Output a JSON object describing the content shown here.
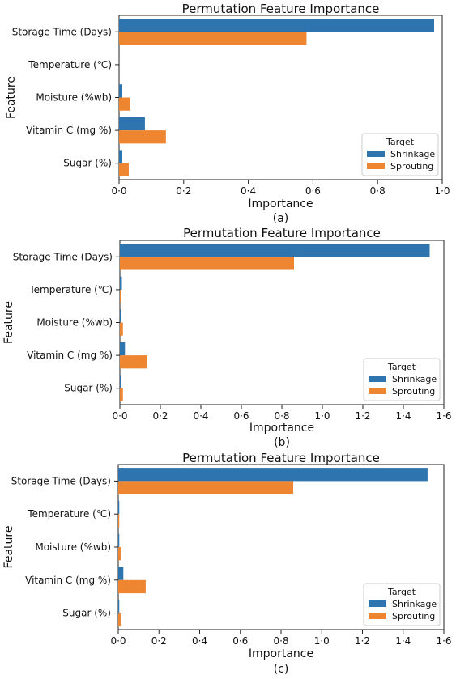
{
  "colors": {
    "shrinkage": "#2e75b0",
    "sprouting": "#ee8531"
  },
  "chart_data": [
    {
      "type": "bar",
      "orientation": "horizontal",
      "title": "Permutation Feature Importance",
      "xlabel": "Importance",
      "ylabel": "Feature",
      "caption": "(a)",
      "categories": [
        "Storage Time (Days)",
        "Temperature (℃)",
        "Moisture (%wb)",
        "Vitamin C (mg %)",
        "Sugar (%)"
      ],
      "series": [
        {
          "name": "Shrinkage",
          "values": [
            0.975,
            0.0,
            0.01,
            0.08,
            0.01
          ]
        },
        {
          "name": "Sprouting",
          "values": [
            0.58,
            0.0,
            0.035,
            0.145,
            0.03
          ]
        }
      ],
      "xlim": [
        0,
        1.0
      ],
      "xticks": [
        0,
        0.2,
        0.4,
        0.6,
        0.8,
        1.0
      ],
      "xtick_labels": [
        "0·0",
        "0·2",
        "0·4",
        "0·6",
        "0·8",
        "1·0"
      ],
      "legend_title": "Target",
      "legend_position": "lower-right"
    },
    {
      "type": "bar",
      "orientation": "horizontal",
      "title": "Permutation Feature Importance",
      "xlabel": "Importance",
      "ylabel": "Feature",
      "caption": "(b)",
      "categories": [
        "Storage Time (Days)",
        "Temperature (℃)",
        "Moisture (%wb)",
        "Vitamin C (mg %)",
        "Sugar (%)"
      ],
      "series": [
        {
          "name": "Shrinkage",
          "values": [
            1.53,
            0.01,
            0.005,
            0.025,
            0.005
          ]
        },
        {
          "name": "Sprouting",
          "values": [
            0.86,
            0.005,
            0.015,
            0.135,
            0.015
          ]
        }
      ],
      "xlim": [
        0,
        1.6
      ],
      "xticks": [
        0,
        0.2,
        0.4,
        0.6,
        0.8,
        1.0,
        1.2,
        1.4,
        1.6
      ],
      "xtick_labels": [
        "0·0",
        "0·2",
        "0·4",
        "0·6",
        "0·8",
        "1·0",
        "1·2",
        "1·4",
        "1·6"
      ],
      "legend_title": "Target",
      "legend_position": "lower-right"
    },
    {
      "type": "bar",
      "orientation": "horizontal",
      "title": "Permutation Feature Importance",
      "xlabel": "Importance",
      "ylabel": "Feature",
      "caption": "(c)",
      "categories": [
        "Storage Time (Days)",
        "Temperature (℃)",
        "Moisture (%wb)",
        "Vitamin C (mg %)",
        "Sugar (%)"
      ],
      "series": [
        {
          "name": "Shrinkage",
          "values": [
            1.52,
            0.005,
            0.005,
            0.025,
            0.005
          ]
        },
        {
          "name": "Sprouting",
          "values": [
            0.86,
            0.005,
            0.015,
            0.135,
            0.015
          ]
        }
      ],
      "xlim": [
        0,
        1.6
      ],
      "xticks": [
        0,
        0.2,
        0.4,
        0.6,
        0.8,
        1.0,
        1.2,
        1.4,
        1.6
      ],
      "xtick_labels": [
        "0·0",
        "0·2",
        "0·4",
        "0·6",
        "0·8",
        "1·0",
        "1·2",
        "1·4",
        "1·6"
      ],
      "legend_title": "Target",
      "legend_position": "lower-right"
    }
  ]
}
